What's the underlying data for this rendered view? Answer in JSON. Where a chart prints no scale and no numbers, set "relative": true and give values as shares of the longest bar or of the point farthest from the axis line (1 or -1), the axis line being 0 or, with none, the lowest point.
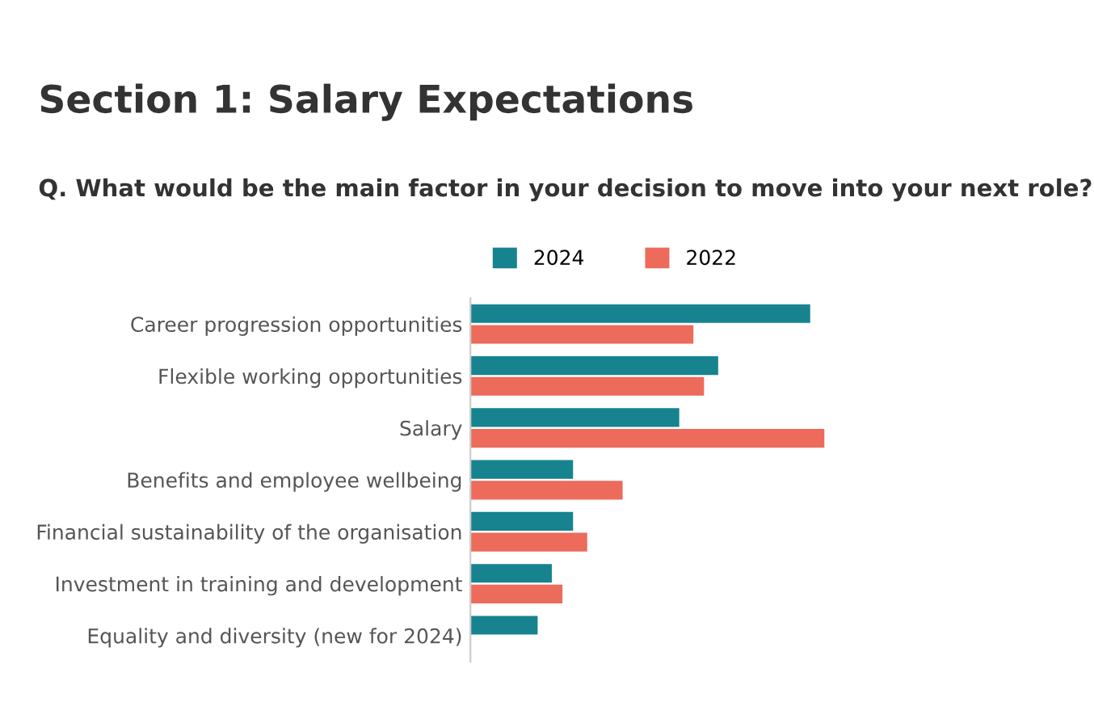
{
  "chart_data": {
    "type": "bar",
    "orientation": "horizontal",
    "relative": true,
    "title": "Section 1: Salary Expectations",
    "subtitle": "Q. What would be the main factor in your decision to move into your next role?",
    "categories": [
      "Career progression opportunities",
      "Flexible working opportunities",
      "Salary",
      "Benefits and employee wellbeing",
      "Financial sustainability of the organisation",
      "Investment in training and development",
      "Equality and diversity (new for 2024)"
    ],
    "series": [
      {
        "name": "2024",
        "color": "#17838f",
        "values": [
          0.96,
          0.7,
          0.59,
          0.29,
          0.29,
          0.23,
          0.19
        ]
      },
      {
        "name": "2022",
        "color": "#ec6b5b",
        "values": [
          0.63,
          0.66,
          1.0,
          0.43,
          0.33,
          0.26,
          null
        ]
      }
    ],
    "legend": "top",
    "grid": false
  }
}
